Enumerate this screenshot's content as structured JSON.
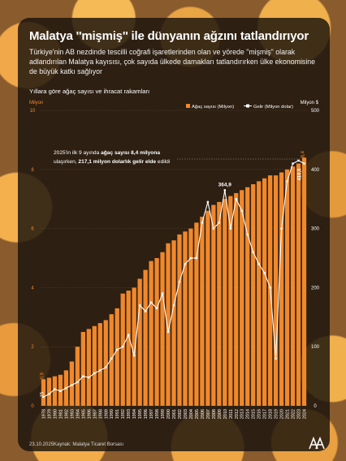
{
  "header": {
    "title": "Malatya ''mişmiş'' ile dünyanın ağzını tatlandırıyor",
    "subtitle": "Türkiye'nin AB nezdinde tescilli coğrafi işaretlerinden olan ve yörede \"mişmiş\" olarak adlandırılan Malatya kayısısı, çok sayıda ülkede damakları tatlandırırken ülke ekonomisine de büyük katkı sağlıyor"
  },
  "chart_caption": "Yıllara göre ağaç sayısı ve ihracat rakamları",
  "annotation": {
    "part1": "2025'in ilk 9 ayında ",
    "bold1": "ağaç sayısı 8,4 milyona",
    "part2": " ulaşırken, ",
    "bold2": "217,1 milyon dolarlık gelir elde",
    "part3": " edildi"
  },
  "footer": {
    "date": "23.10.2025",
    "source": "Kaynak: Malatya Ticaret Borsası",
    "logo": "aa-logo-icon"
  },
  "colors": {
    "bar": "#f0882c",
    "line": "#ffffff",
    "card": "#18120c",
    "axis_text": "#f0882c"
  },
  "chart_data": {
    "type": "bar",
    "categories": [
      "1978",
      "1979",
      "1980",
      "1981",
      "1982",
      "1983",
      "1984",
      "1985",
      "1986",
      "1987",
      "1988",
      "1989",
      "1990",
      "1991",
      "1992",
      "1993",
      "1994",
      "1995",
      "1996",
      "1997",
      "1998",
      "1999",
      "2000",
      "2001",
      "2002",
      "2003",
      "2004",
      "2005",
      "2006",
      "2007",
      "2008",
      "2009",
      "2010",
      "2011",
      "2012",
      "2013",
      "2014",
      "2015",
      "2016",
      "2017",
      "2018",
      "2019",
      "2020",
      "2021",
      "2022",
      "2023",
      "2024"
    ],
    "left_axis": {
      "unit": "Milyon",
      "ylim": [
        0,
        10
      ],
      "ticks": [
        0,
        2,
        4,
        6,
        8,
        10
      ]
    },
    "right_axis": {
      "unit": "Milyon $",
      "ylim": [
        0,
        500
      ],
      "ticks": [
        0,
        100,
        200,
        300,
        400,
        500
      ]
    },
    "legend": {
      "placement": "top-right",
      "entries": [
        "Ağaç sayısı (Milyon)",
        "Gelir (Milyon dolar)"
      ]
    },
    "series": [
      {
        "name": "Ağaç sayısı (Milyon)",
        "type": "bar",
        "axis": "left",
        "values": [
          0.9,
          0.95,
          1.0,
          1.05,
          1.2,
          1.5,
          2.0,
          2.5,
          2.6,
          2.7,
          2.8,
          2.9,
          3.1,
          3.3,
          3.8,
          3.9,
          4.0,
          4.3,
          4.6,
          4.9,
          5.0,
          5.2,
          5.5,
          5.6,
          5.8,
          5.9,
          6.0,
          6.2,
          6.4,
          6.6,
          6.8,
          6.9,
          7.0,
          7.1,
          7.2,
          7.3,
          7.4,
          7.5,
          7.6,
          7.7,
          7.8,
          7.8,
          7.9,
          8.0,
          8.1,
          8.2,
          8.4
        ],
        "labels": [
          {
            "index": 0,
            "text": "0,9"
          },
          {
            "index": 46,
            "text": "8,4"
          }
        ]
      },
      {
        "name": "Gelir (Milyon dolar)",
        "type": "line",
        "axis": "right",
        "values": [
          15,
          20,
          28,
          25,
          30,
          35,
          40,
          50,
          48,
          55,
          60,
          65,
          80,
          95,
          100,
          120,
          85,
          170,
          160,
          175,
          165,
          190,
          125,
          170,
          210,
          240,
          250,
          250,
          310,
          345,
          300,
          310,
          364.9,
          300,
          350,
          330,
          290,
          260,
          240,
          225,
          200,
          80,
          300,
          380,
          410,
          415,
          410
        ],
        "labels": [
          {
            "index": 0,
            "text": "15"
          },
          {
            "index": 32,
            "text": "364,9"
          },
          {
            "index": 46,
            "text": "410,5"
          }
        ]
      }
    ]
  }
}
